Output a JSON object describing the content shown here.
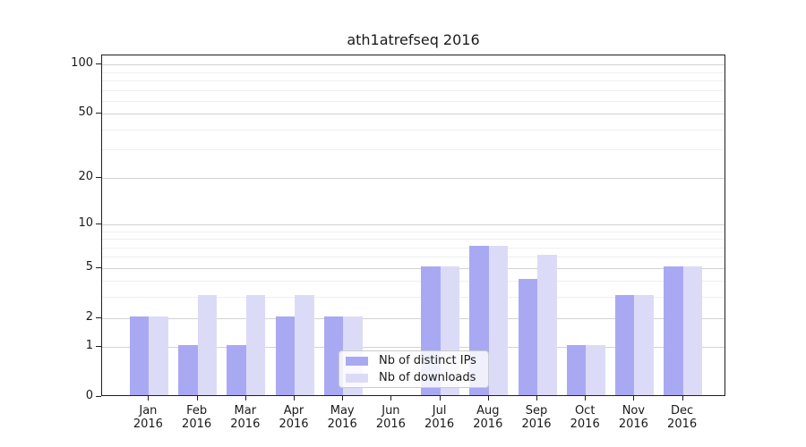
{
  "chart_data": {
    "type": "bar",
    "title": "ath1atrefseq 2016",
    "xlabel": "",
    "ylabel": "",
    "categories": [
      "Jan 2016",
      "Feb 2016",
      "Mar 2016",
      "Apr 2016",
      "May 2016",
      "Jun 2016",
      "Jul 2016",
      "Aug 2016",
      "Sep 2016",
      "Oct 2016",
      "Nov 2016",
      "Dec 2016"
    ],
    "series": [
      {
        "name": "Nb of distinct IPs",
        "color": "#a9a9f3",
        "values": [
          2,
          1,
          1,
          2,
          2,
          0,
          5,
          7,
          4,
          1,
          3,
          5
        ]
      },
      {
        "name": "Nb of downloads",
        "color": "#dbdbf8",
        "values": [
          2,
          3,
          3,
          3,
          2,
          0,
          5,
          7,
          6,
          1,
          3,
          5
        ]
      }
    ],
    "y_axis": {
      "scale": "log10(1+v)",
      "major_ticks": [
        0,
        1,
        2,
        5,
        10,
        20,
        50,
        100
      ],
      "minor_ticks": [
        3,
        4,
        6,
        7,
        8,
        9,
        30,
        40,
        60,
        70,
        80,
        90
      ],
      "ylim": [
        0,
        114
      ]
    },
    "grid": "on",
    "legend_position": "lower center"
  }
}
